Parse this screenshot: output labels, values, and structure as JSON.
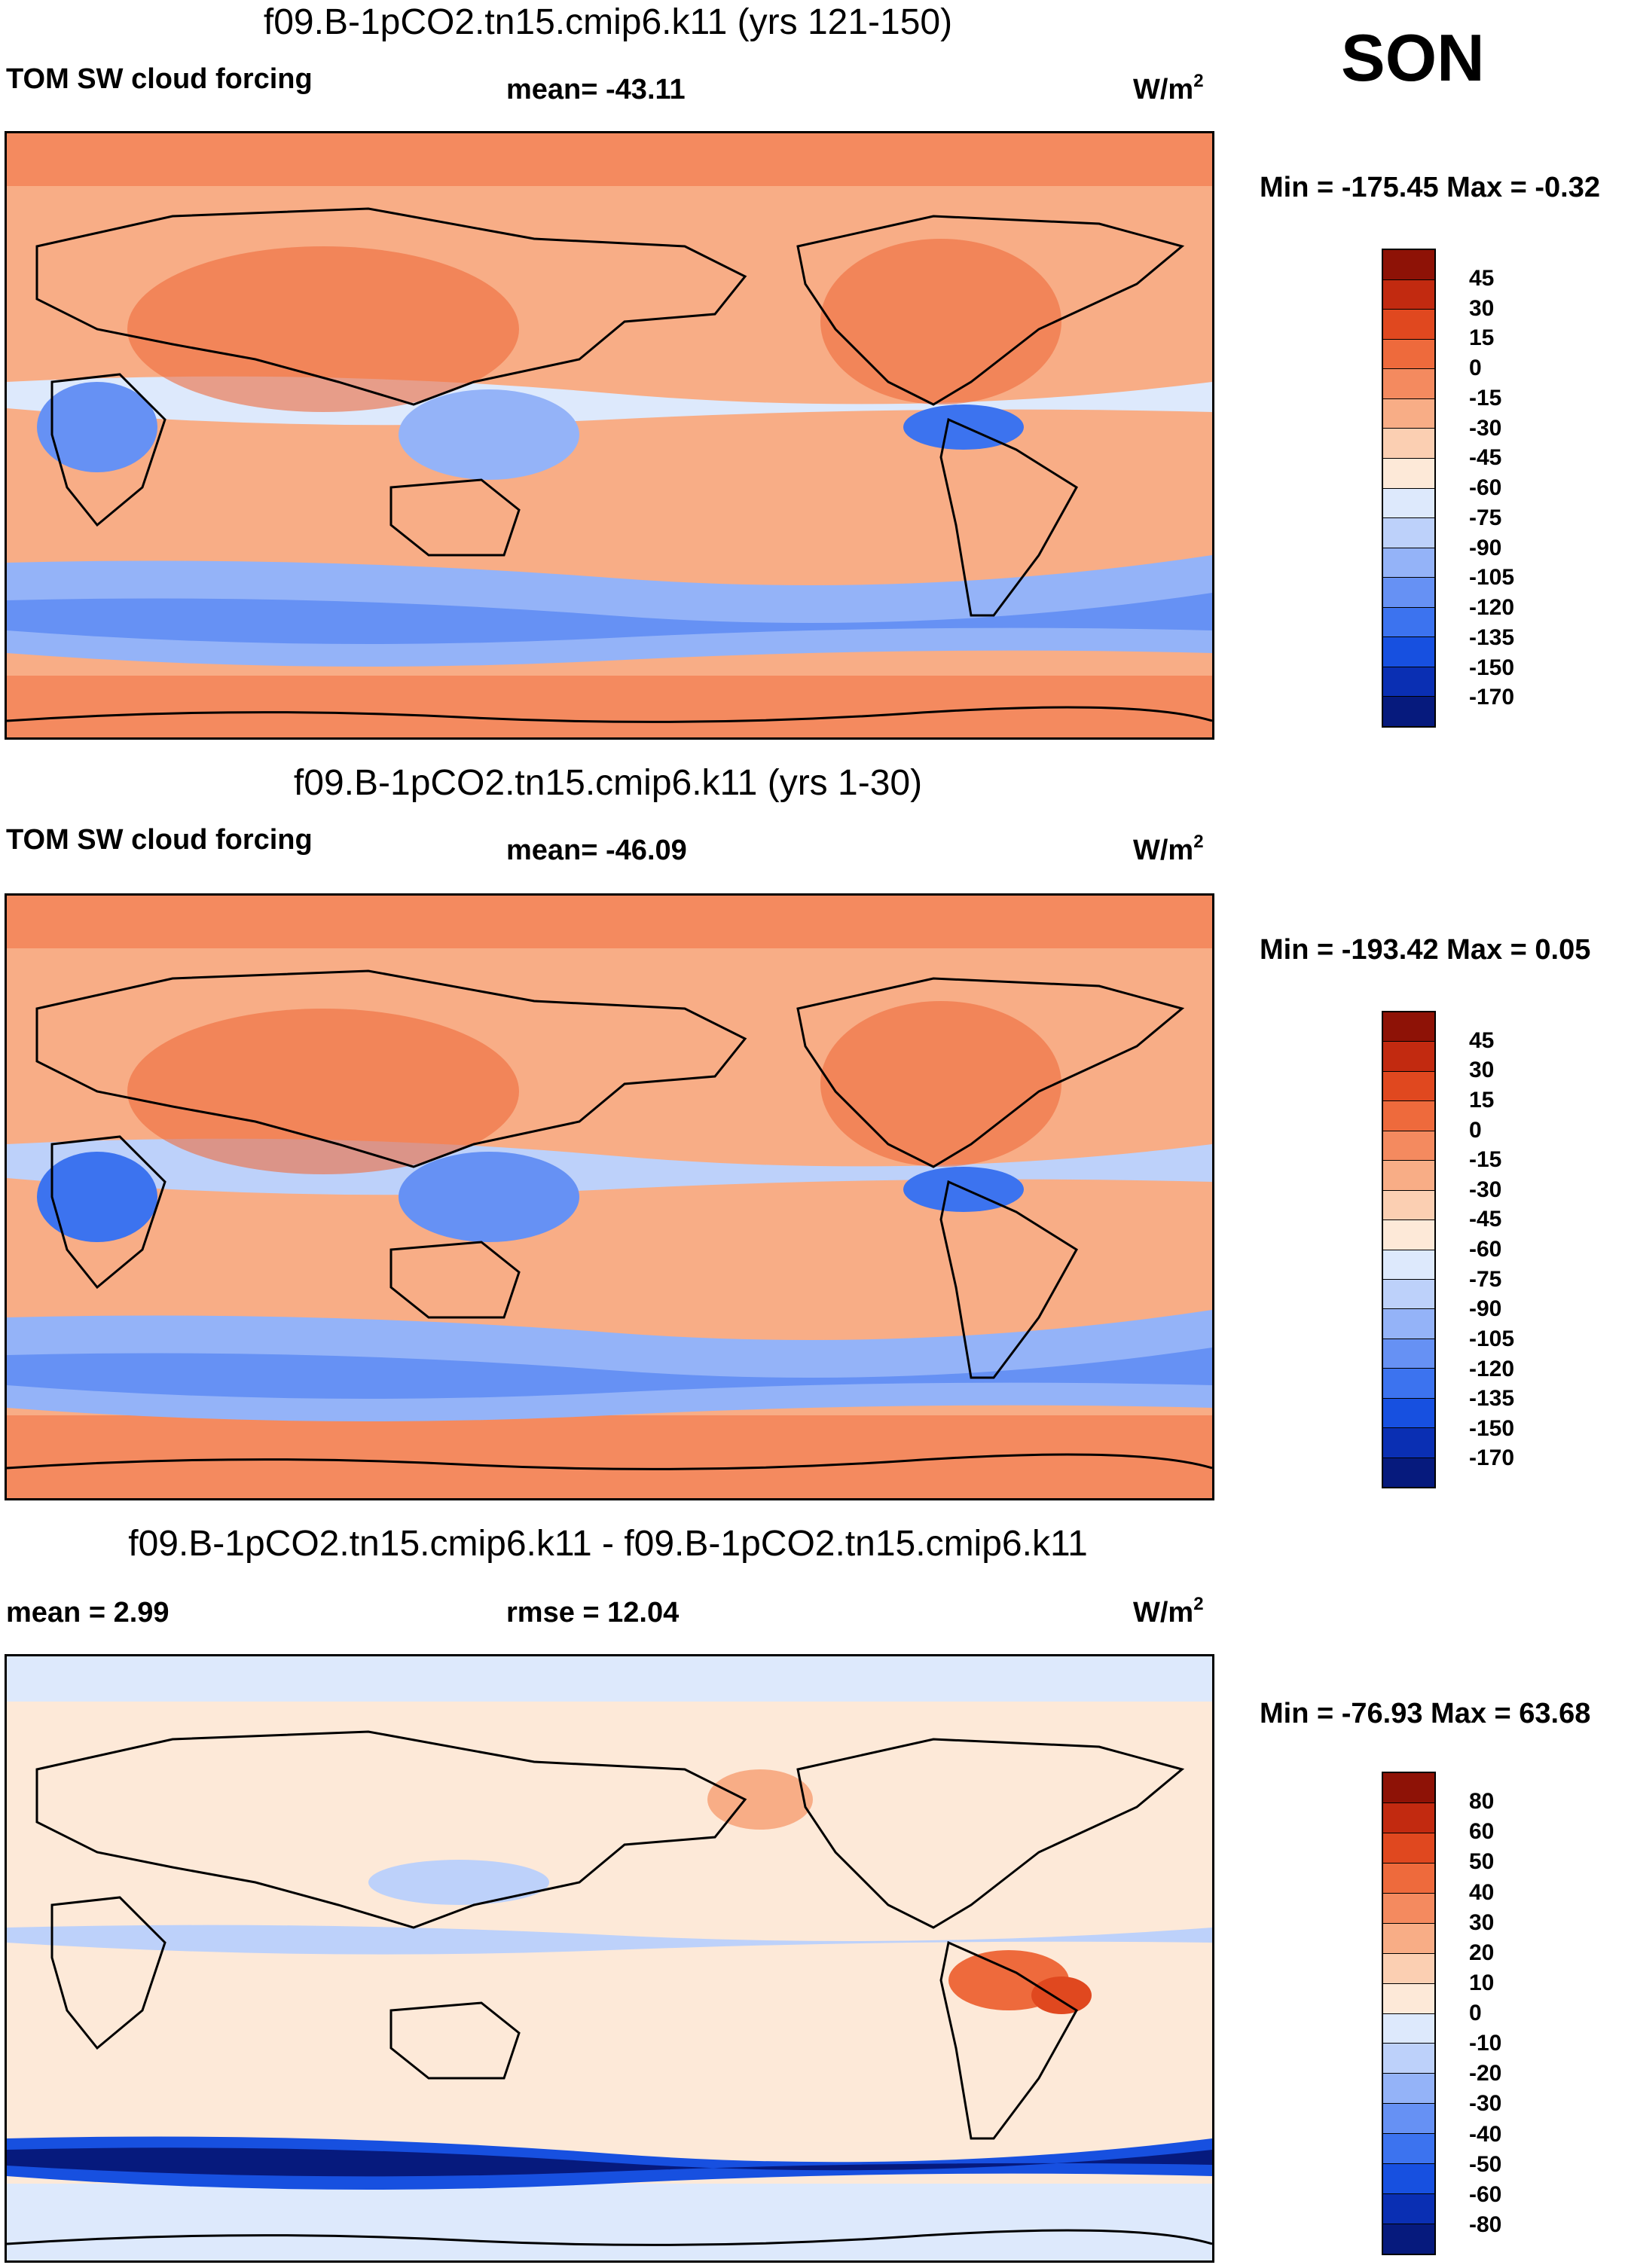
{
  "season": "SON",
  "units": "W/m",
  "units_exp": "2",
  "palette": [
    "#061a7d",
    "#0a2fb3",
    "#1750e0",
    "#3c73ef",
    "#6691f4",
    "#94b3f8",
    "#bdd1fa",
    "#dde9fc",
    "#fde9d8",
    "#fbcfb2",
    "#f8ad86",
    "#f48a5f",
    "#ee6a3c",
    "#e0481f",
    "#c22a10",
    "#8e1206"
  ],
  "panels": [
    {
      "title": "f09.B-1pCO2.tn15.cmip6.k11 (yrs 121-150)",
      "left_label": "TOM SW cloud forcing",
      "center_label": "mean= -43.11",
      "minmax": "Min = -175.45 Max =  -0.32",
      "colorbar_labels": [
        "45",
        "30",
        "15",
        "0",
        "-15",
        "-30",
        "-45",
        "-60",
        "-75",
        "-90",
        "-105",
        "-120",
        "-135",
        "-150",
        "-170"
      ],
      "ocean_color": "#f8ad86",
      "polar_color": "#f48a5f"
    },
    {
      "title": "f09.B-1pCO2.tn15.cmip6.k11 (yrs 1-30)",
      "left_label": "TOM SW cloud forcing",
      "center_label": "mean= -46.09",
      "minmax": "Min = -193.42 Max =   0.05",
      "colorbar_labels": [
        "45",
        "30",
        "15",
        "0",
        "-15",
        "-30",
        "-45",
        "-60",
        "-75",
        "-90",
        "-105",
        "-120",
        "-135",
        "-150",
        "-170"
      ],
      "ocean_color": "#f8ad86",
      "polar_color": "#f48a5f"
    },
    {
      "title": "f09.B-1pCO2.tn15.cmip6.k11 - f09.B-1pCO2.tn15.cmip6.k11",
      "left_label": "mean =   2.99",
      "center_label": "rmse =  12.04",
      "minmax": "Min = -76.93 Max =  63.68",
      "colorbar_labels": [
        "80",
        "60",
        "50",
        "40",
        "30",
        "20",
        "10",
        "0",
        "-10",
        "-20",
        "-30",
        "-40",
        "-50",
        "-60",
        "-80"
      ],
      "ocean_color": "#fde9d8",
      "polar_color": "#dde9fc"
    }
  ]
}
